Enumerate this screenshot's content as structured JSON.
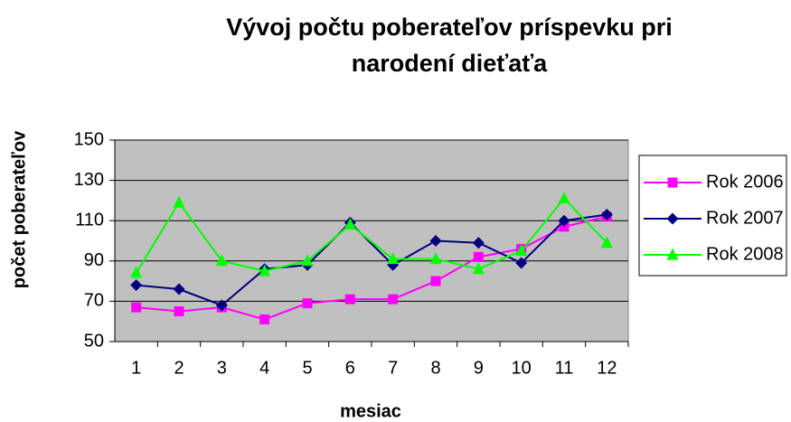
{
  "chart_data": {
    "type": "line",
    "title": [
      "Vývoj počtu poberateľov príspevku pri",
      "narodení dieťaťa"
    ],
    "xlabel": "mesiac",
    "ylabel": "počet poberateľov",
    "categories": [
      "1",
      "2",
      "3",
      "4",
      "5",
      "6",
      "7",
      "8",
      "9",
      "10",
      "11",
      "12"
    ],
    "series": [
      {
        "name": "Rok 2006",
        "color": "#ff00ff",
        "marker": "square",
        "values": [
          67,
          65,
          67,
          61,
          69,
          71,
          71,
          80,
          92,
          96,
          107,
          112
        ]
      },
      {
        "name": "Rok 2007",
        "color": "#000080",
        "marker": "diamond",
        "values": [
          78,
          76,
          68,
          86,
          88,
          109,
          88,
          100,
          99,
          89,
          110,
          113
        ]
      },
      {
        "name": "Rok 2008",
        "color": "#00ff00",
        "marker": "triangle",
        "values": [
          84,
          119,
          90,
          85,
          90,
          108,
          91,
          91,
          86,
          95,
          121,
          99
        ]
      }
    ],
    "ylim": [
      50,
      150
    ],
    "yticks": [
      50,
      70,
      90,
      110,
      130,
      150
    ],
    "grid": true,
    "legend": "right"
  }
}
